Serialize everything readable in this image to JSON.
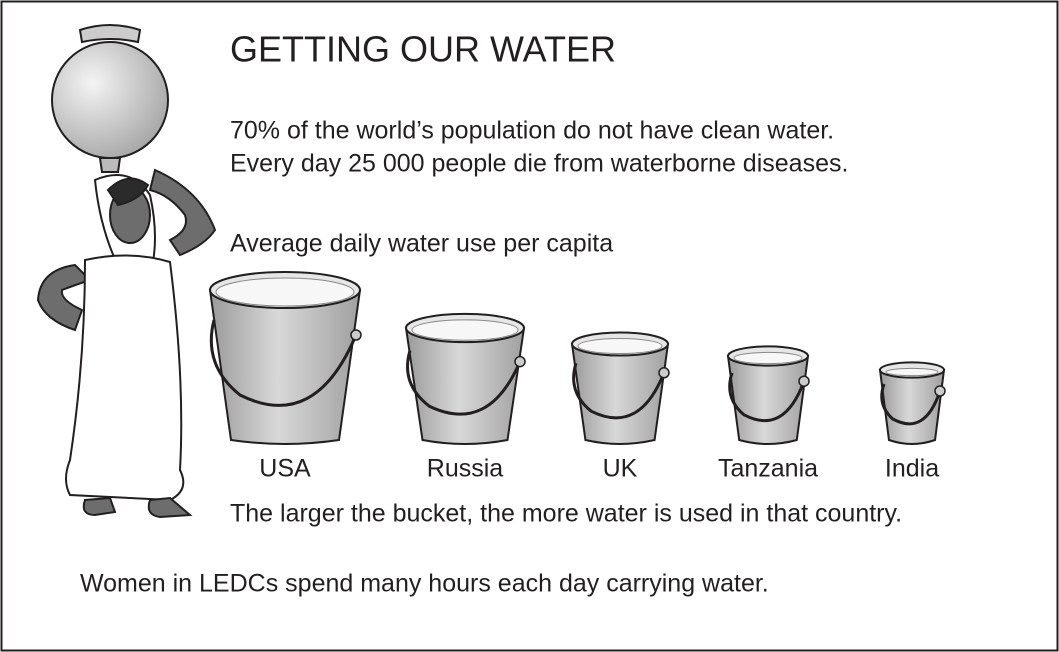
{
  "header": {
    "title": "GETTING OUR WATER"
  },
  "facts": [
    "70% of the world’s population do not have clean water.",
    "Every day 25 000 people die from waterborne diseases."
  ],
  "figure": {
    "title": "Average daily water use per capita",
    "countries": [
      "USA",
      "Russia",
      "UK",
      "Tanzania",
      "India"
    ],
    "caption": "The larger the bucket, the more water is used in that country."
  },
  "footer": "Women in LEDCs spend many hours each day carrying water."
}
